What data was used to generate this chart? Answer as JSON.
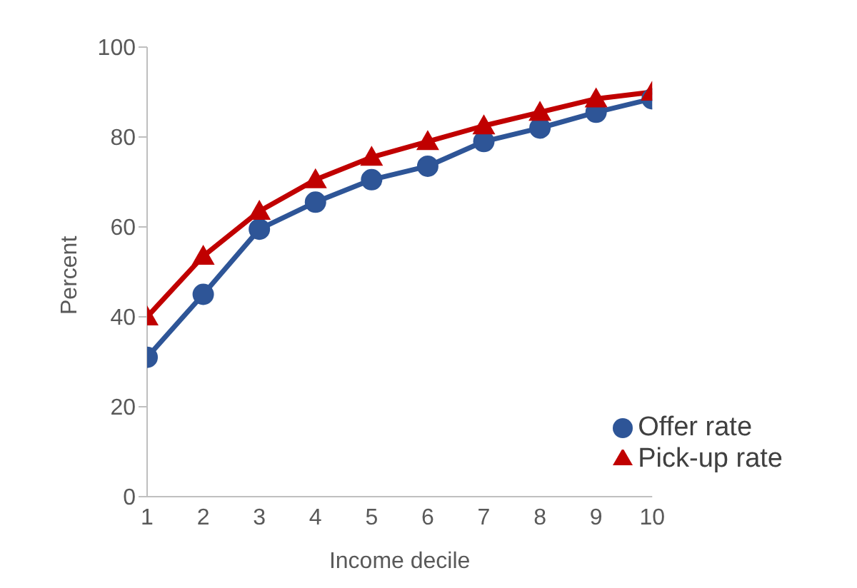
{
  "chart_data": {
    "type": "line",
    "xlabel": "Income decile",
    "ylabel": "Percent",
    "x": [
      1,
      2,
      3,
      4,
      5,
      6,
      7,
      8,
      9,
      10
    ],
    "series": [
      {
        "name": "Offer rate",
        "color": "#2e5597",
        "marker": "circle",
        "values": [
          31,
          45,
          59.5,
          65.5,
          70.5,
          73.5,
          79,
          82,
          85.5,
          88.5
        ]
      },
      {
        "name": "Pick-up rate",
        "color": "#c00000",
        "marker": "triangle",
        "values": [
          40,
          53.5,
          63.5,
          70.5,
          75.5,
          79,
          82.5,
          85.5,
          88.5,
          90
        ]
      }
    ],
    "xlim": [
      1,
      10
    ],
    "xticks": [
      1,
      2,
      3,
      4,
      5,
      6,
      7,
      8,
      9,
      10
    ],
    "ylim": [
      0,
      100
    ],
    "yticks": [
      0,
      20,
      40,
      60,
      80,
      100
    ],
    "grid": false,
    "legend": "bottom right"
  }
}
